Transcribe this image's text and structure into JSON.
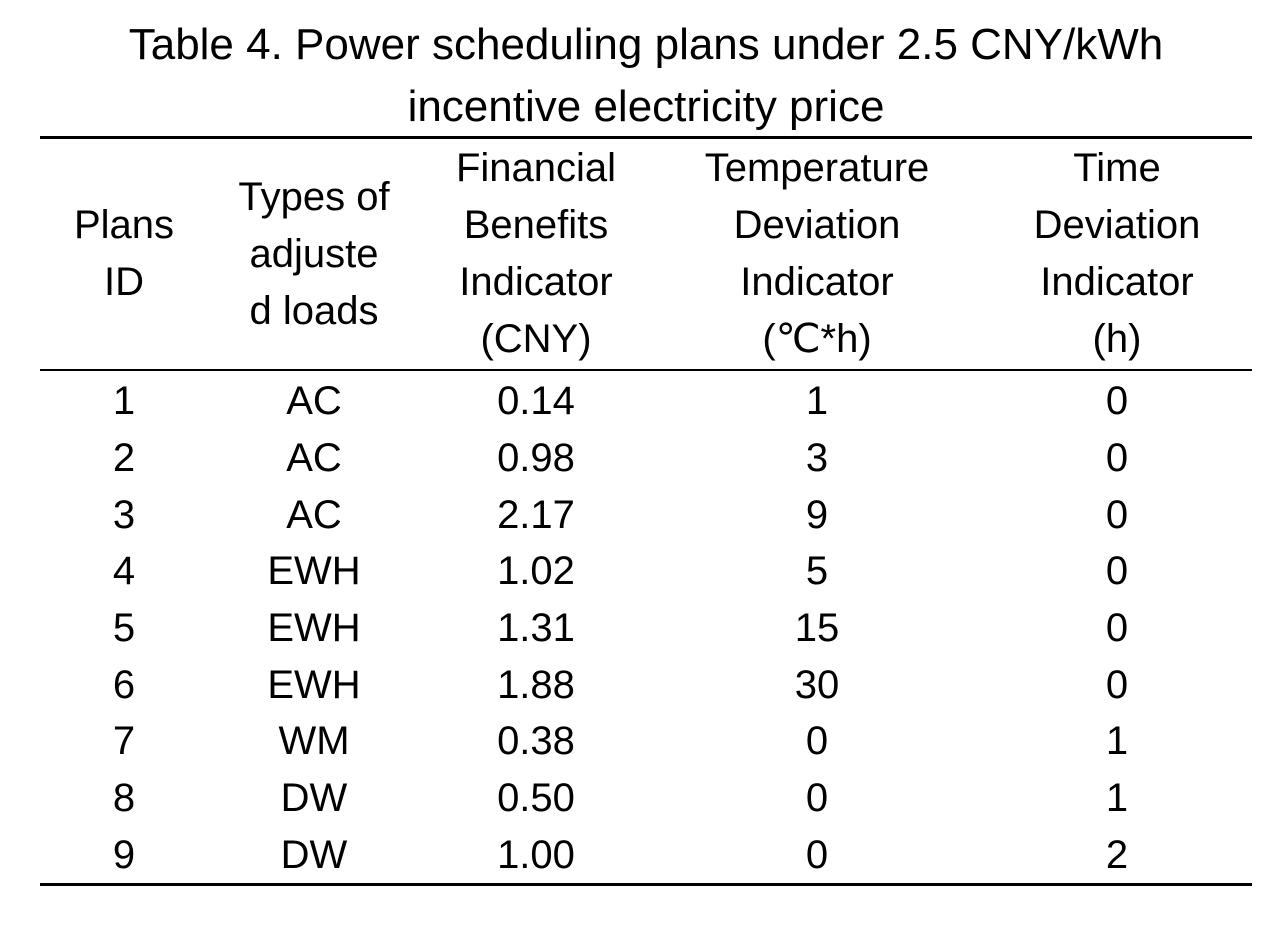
{
  "caption": {
    "line1": "Table 4. Power scheduling plans under 2.5 CNY/kWh",
    "line2": "incentive electricity price"
  },
  "table": {
    "headers": [
      [
        "Plans",
        "ID"
      ],
      [
        "Types of",
        "adjuste",
        "d loads"
      ],
      [
        "Financial",
        "Benefits",
        "Indicator",
        "(CNY)"
      ],
      [
        "Temperature",
        "Deviation",
        "Indicator",
        "(℃*h)"
      ],
      [
        "Time",
        "Deviation",
        "Indicator",
        "(h)"
      ]
    ],
    "rows": [
      [
        "1",
        "AC",
        "0.14",
        "1",
        "0"
      ],
      [
        "2",
        "AC",
        "0.98",
        "3",
        "0"
      ],
      [
        "3",
        "AC",
        "2.17",
        "9",
        "0"
      ],
      [
        "4",
        "EWH",
        "1.02",
        "5",
        "0"
      ],
      [
        "5",
        "EWH",
        "1.31",
        "15",
        "0"
      ],
      [
        "6",
        "EWH",
        "1.88",
        "30",
        "0"
      ],
      [
        "7",
        "WM",
        "0.38",
        "0",
        "1"
      ],
      [
        "8",
        "DW",
        "0.50",
        "0",
        "1"
      ],
      [
        "9",
        "DW",
        "1.00",
        "0",
        "2"
      ]
    ]
  }
}
